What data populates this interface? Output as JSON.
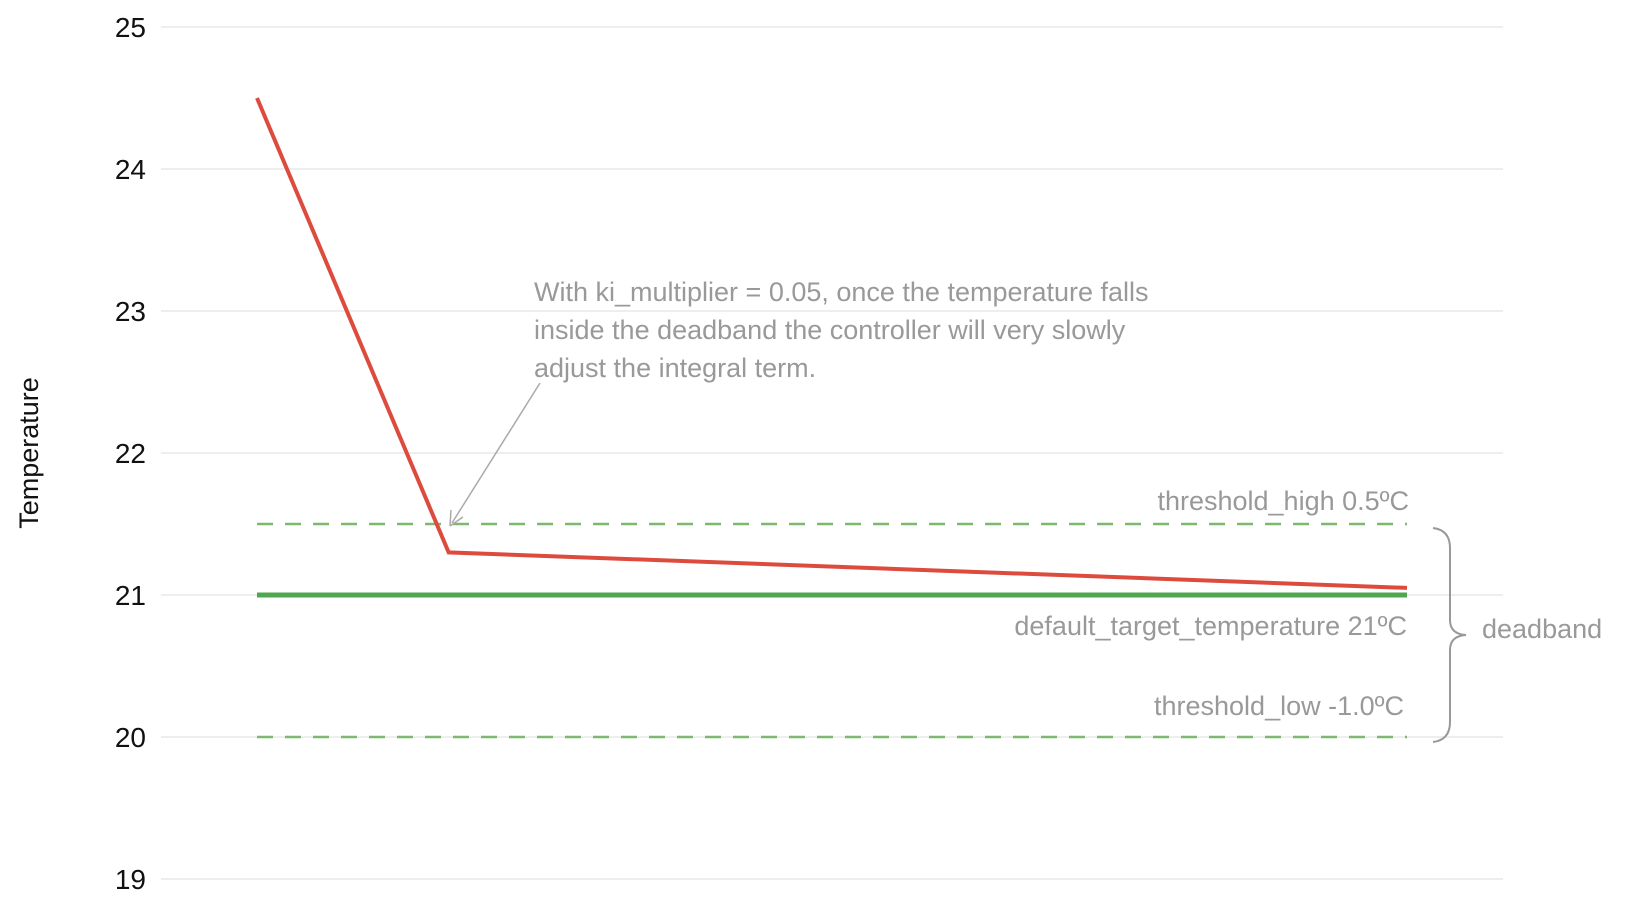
{
  "chart_data": {
    "type": "line",
    "title": "",
    "xlabel": "",
    "ylabel": "Temperature",
    "ylim": [
      19,
      25
    ],
    "yticks": [
      "25",
      "24",
      "23",
      "22",
      "21",
      "20",
      "19"
    ],
    "grid": true,
    "x": [
      0,
      1,
      6
    ],
    "series": [
      {
        "values": [
          24.5,
          21.3,
          21.05
        ],
        "color": "#dd4b3e"
      }
    ],
    "reference_lines": [
      {
        "value": 21.5,
        "style": "dashed",
        "color": "#7fb86f",
        "label": "threshold_high  0.5ºC"
      },
      {
        "value": 21.0,
        "style": "solid",
        "color": "#4fa74f",
        "label": "default_target_temperature  21ºC"
      },
      {
        "value": 20.0,
        "style": "dashed",
        "color": "#7fb86f",
        "label": "threshold_low  -1.0ºC"
      }
    ],
    "brace_label": "deadband",
    "annotation": {
      "lines": [
        "With ki_multiplier = 0.05, once the temperature falls",
        "inside the deadband the controller will very slowly",
        "adjust the integral term."
      ],
      "points_to": {
        "x": 1,
        "y": 21.5
      }
    }
  }
}
